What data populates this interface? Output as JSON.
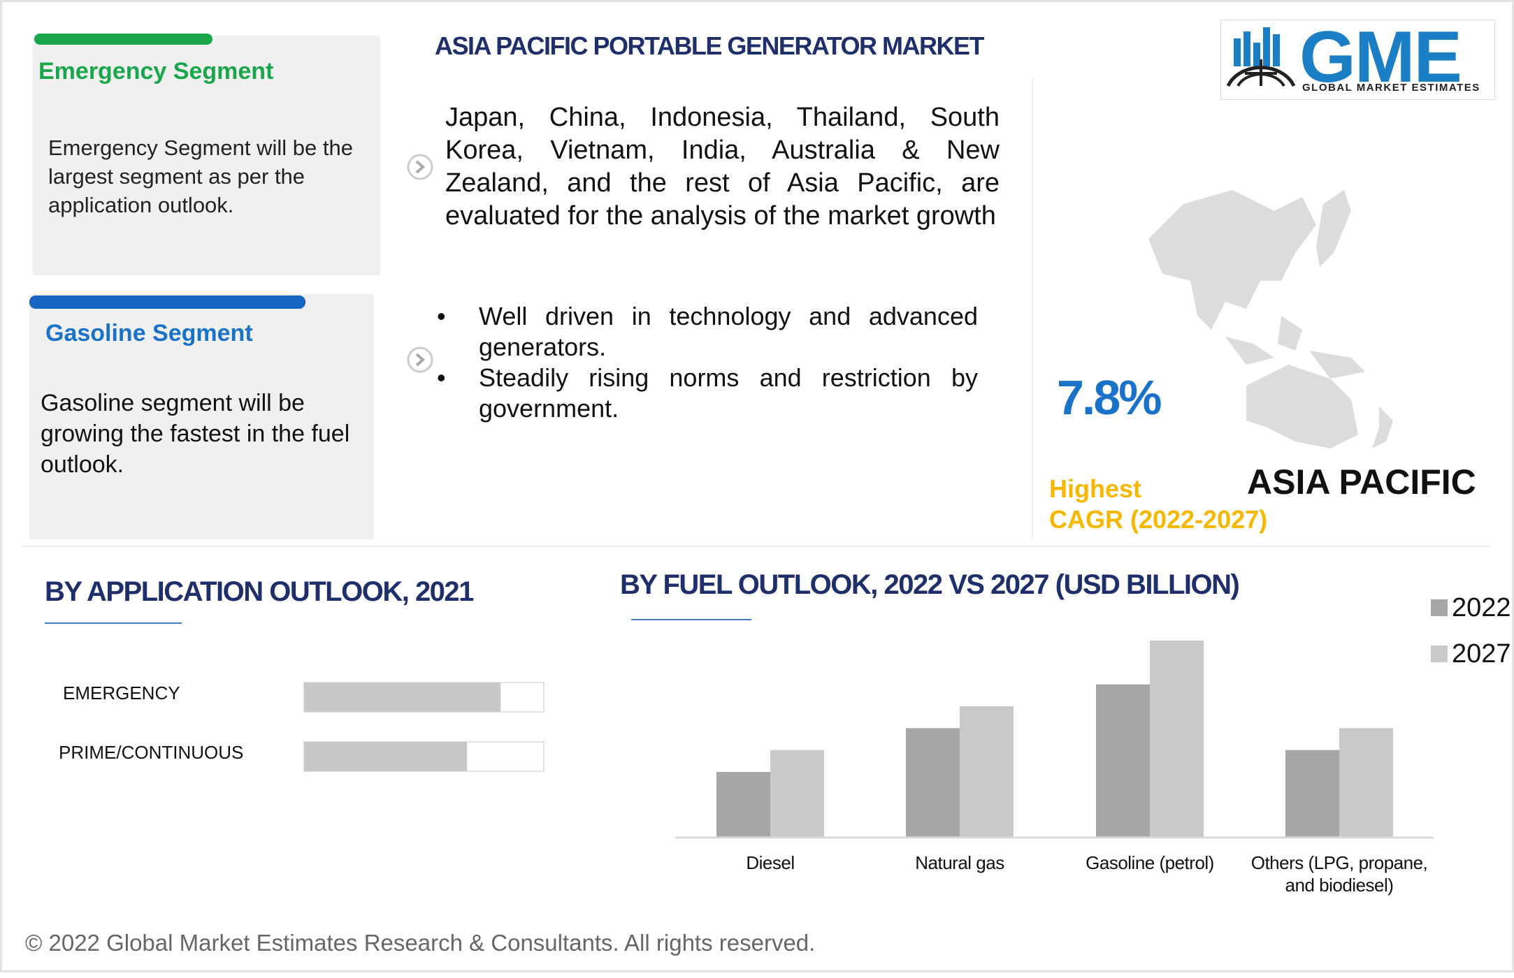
{
  "header": {
    "title": "ASIA PACIFIC PORTABLE GENERATOR MARKET"
  },
  "logo": {
    "name": "GME",
    "tagline": "GLOBAL MARKET ESTIMATES"
  },
  "cards": [
    {
      "title": "Emergency Segment",
      "text": "Emergency Segment will be the largest segment as per the application outlook."
    },
    {
      "title": "Gasoline Segment",
      "text": "Gasoline segment will be growing the fastest in the fuel outlook."
    }
  ],
  "overview": {
    "text": "Japan, China, Indonesia, Thailand, South Korea, Vietnam, India, Australia & New Zealand, and the rest of Asia Pacific, are evaluated for the analysis of the market growth",
    "bullets": [
      "Well driven in technology and advanced generators.",
      "Steadily rising norms and restriction by government."
    ]
  },
  "highlight": {
    "value": "7.8%",
    "label": [
      "Highest",
      "CAGR (2022-2027)"
    ],
    "region": "ASIA PACIFIC"
  },
  "chart_data": [
    {
      "type": "hbar",
      "title": "BY APPLICATION OUTLOOK, 2021",
      "categories": [
        "EMERGENCY",
        "PRIME/CONTINUOUS"
      ],
      "values": [
        82,
        68
      ],
      "xlim": [
        0,
        100
      ],
      "color": "#c8c8c8"
    },
    {
      "type": "bar",
      "title": "BY FUEL OUTLOOK, 2022 VS 2027 (USD BILLION)",
      "categories": [
        "Diesel",
        "Natural gas",
        "Gasoline (petrol)",
        "Others (LPG, propane, and biodiesel)"
      ],
      "series": [
        {
          "name": "2022",
          "color": "#a6a6a6",
          "values": [
            3,
            5,
            7,
            4
          ]
        },
        {
          "name": "2027",
          "color": "#c9c9c9",
          "values": [
            4,
            6,
            9,
            5
          ]
        }
      ]
    }
  ],
  "footer": "© 2022 Global Market Estimates Research & Consultants. All rights reserved."
}
